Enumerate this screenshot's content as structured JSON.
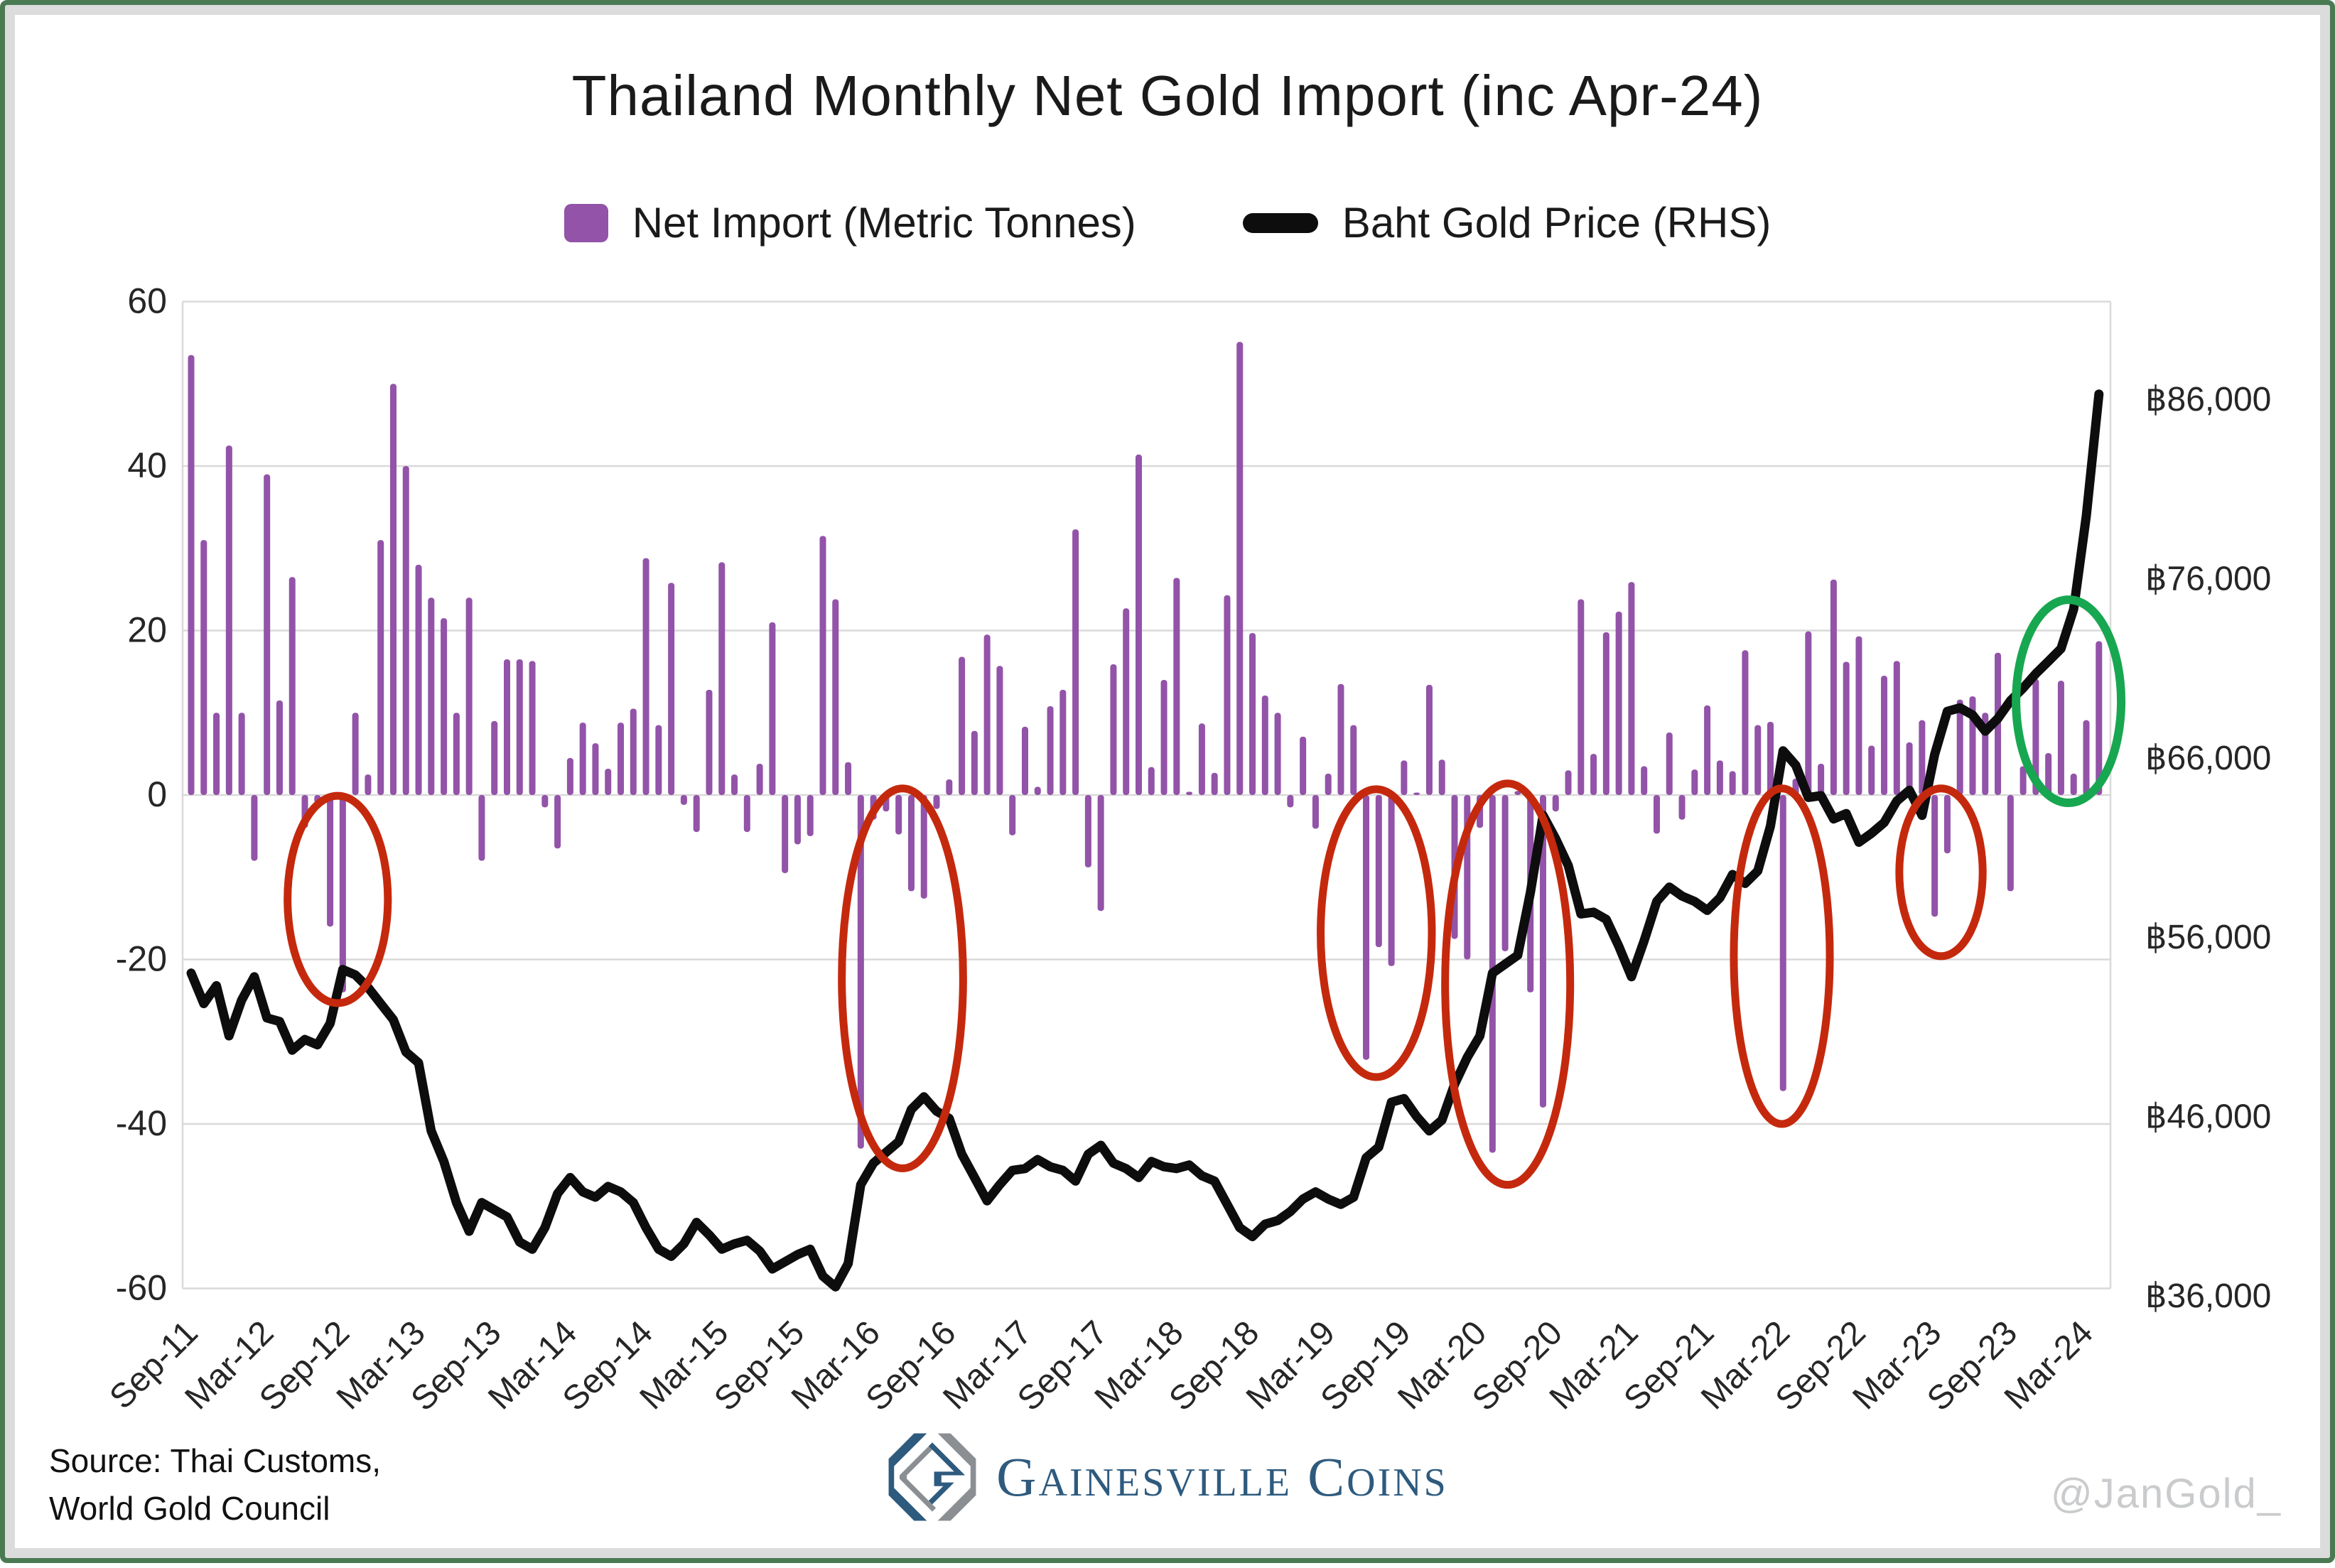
{
  "title": "Thailand Monthly Net Gold Import (inc Apr-24)",
  "legend": {
    "net_import_label": "Net Import (Metric Tonnes)",
    "gold_price_label": "Baht Gold Price (RHS)"
  },
  "footer": {
    "source_line1": "Source: Thai Customs,",
    "source_line2": "World Gold Council",
    "logo_word1": "Gainesville",
    "logo_word2": "Coins",
    "watermark": "@JanGold_"
  },
  "colors": {
    "bar": "#9253a8",
    "line": "#0d0d0d",
    "grid": "#d9d9d9",
    "red_circle": "#c5290d",
    "green_circle": "#17a750",
    "logo_blue": "#2e5a7e",
    "frame_green": "#4a7a52"
  },
  "chart_data": {
    "type": "bar+line",
    "title": "Thailand Monthly Net Gold Import (inc Apr-24)",
    "series": [
      {
        "name": "Net Import (Metric Tonnes)",
        "type": "bar",
        "axis": "left"
      },
      {
        "name": "Baht Gold Price (RHS)",
        "type": "line",
        "axis": "right"
      }
    ],
    "ylim_left": [
      -60,
      60
    ],
    "y_ticks_left": [
      "60",
      "40",
      "20",
      "0",
      "-20",
      "-40",
      "-60"
    ],
    "y_ticks_left_values": [
      60,
      40,
      20,
      0,
      -20,
      -40,
      -60
    ],
    "y_ticks_right": [
      "฿86,000",
      "฿76,000",
      "฿66,000",
      "฿56,000",
      "฿46,000",
      "฿36,000"
    ],
    "y_ticks_right_values": [
      86000,
      76000,
      66000,
      56000,
      46000,
      36000
    ],
    "x_tick_labels": [
      "Sep-11",
      "Mar-12",
      "Sep-12",
      "Mar-13",
      "Sep-13",
      "Mar-14",
      "Sep-14",
      "Mar-15",
      "Sep-15",
      "Mar-16",
      "Sep-16",
      "Mar-17",
      "Sep-17",
      "Mar-18",
      "Sep-18",
      "Mar-19",
      "Sep-19",
      "Mar-20",
      "Sep-20",
      "Mar-21",
      "Sep-21",
      "Mar-22",
      "Sep-22",
      "Mar-23",
      "Sep-23",
      "Mar-24"
    ],
    "months": [
      "Sep-11",
      "Oct-11",
      "Nov-11",
      "Dec-11",
      "Jan-12",
      "Feb-12",
      "Mar-12",
      "Apr-12",
      "May-12",
      "Jun-12",
      "Jul-12",
      "Aug-12",
      "Sep-12",
      "Oct-12",
      "Nov-12",
      "Dec-12",
      "Jan-13",
      "Feb-13",
      "Mar-13",
      "Apr-13",
      "May-13",
      "Jun-13",
      "Jul-13",
      "Aug-13",
      "Sep-13",
      "Oct-13",
      "Nov-13",
      "Dec-13",
      "Jan-14",
      "Feb-14",
      "Mar-14",
      "Apr-14",
      "May-14",
      "Jun-14",
      "Jul-14",
      "Aug-14",
      "Sep-14",
      "Oct-14",
      "Nov-14",
      "Dec-14",
      "Jan-15",
      "Feb-15",
      "Mar-15",
      "Apr-15",
      "May-15",
      "Jun-15",
      "Jul-15",
      "Aug-15",
      "Sep-15",
      "Oct-15",
      "Nov-15",
      "Dec-15",
      "Jan-16",
      "Feb-16",
      "Mar-16",
      "Apr-16",
      "May-16",
      "Jun-16",
      "Jul-16",
      "Aug-16",
      "Sep-16",
      "Oct-16",
      "Nov-16",
      "Dec-16",
      "Jan-17",
      "Feb-17",
      "Mar-17",
      "Apr-17",
      "May-17",
      "Jun-17",
      "Jul-17",
      "Aug-17",
      "Sep-17",
      "Oct-17",
      "Nov-17",
      "Dec-17",
      "Jan-18",
      "Feb-18",
      "Mar-18",
      "Apr-18",
      "May-18",
      "Jun-18",
      "Jul-18",
      "Aug-18",
      "Sep-18",
      "Oct-18",
      "Nov-18",
      "Dec-18",
      "Jan-19",
      "Feb-19",
      "Mar-19",
      "Apr-19",
      "May-19",
      "Jun-19",
      "Jul-19",
      "Aug-19",
      "Sep-19",
      "Oct-19",
      "Nov-19",
      "Dec-19",
      "Jan-20",
      "Feb-20",
      "Mar-20",
      "Apr-20",
      "May-20",
      "Jun-20",
      "Jul-20",
      "Aug-20",
      "Sep-20",
      "Oct-20",
      "Nov-20",
      "Dec-20",
      "Jan-21",
      "Feb-21",
      "Mar-21",
      "Apr-21",
      "May-21",
      "Jun-21",
      "Jul-21",
      "Aug-21",
      "Sep-21",
      "Oct-21",
      "Nov-21",
      "Dec-21",
      "Jan-22",
      "Feb-22",
      "Mar-22",
      "Apr-22",
      "May-22",
      "Jun-22",
      "Jul-22",
      "Aug-22",
      "Sep-22",
      "Oct-22",
      "Nov-22",
      "Dec-22",
      "Jan-23",
      "Feb-23",
      "Mar-23",
      "Apr-23",
      "May-23",
      "Jun-23",
      "Jul-23",
      "Aug-23",
      "Sep-23",
      "Oct-23",
      "Nov-23",
      "Dec-23",
      "Jan-24",
      "Feb-24",
      "Mar-24",
      "Apr-24"
    ],
    "net_import_tonnes": [
      53.5,
      31,
      10,
      42.5,
      10,
      -8,
      39,
      11.5,
      26.5,
      -4,
      -1,
      -16,
      -24,
      10,
      2.5,
      31,
      50,
      40,
      28,
      24,
      21.5,
      10,
      24,
      -8,
      9,
      16.5,
      16.5,
      16.3,
      -1.5,
      -6.5,
      4.5,
      8.8,
      6.3,
      3.2,
      8.8,
      10.5,
      28.8,
      8.5,
      25.8,
      -1.2,
      -4.5,
      12.8,
      28.3,
      2.5,
      -4.5,
      3.8,
      21,
      -9.5,
      -6,
      -5,
      31.5,
      23.8,
      4,
      -43,
      -3,
      -2,
      -4.8,
      -11.7,
      -12.6,
      -1.7,
      1.9,
      16.8,
      7.8,
      19.5,
      15.7,
      -4.9,
      8.3,
      1,
      10.8,
      12.8,
      32.3,
      -8.8,
      -14.1,
      15.9,
      22.7,
      41.4,
      3.4,
      14,
      26.4,
      0.4,
      8.7,
      2.7,
      24.3,
      55.1,
      19.7,
      12.1,
      10,
      -1.5,
      7.1,
      -4.1,
      2.6,
      13.5,
      8.5,
      -32.2,
      -18.5,
      -20.8,
      4.2,
      0.3,
      13.4,
      4.3,
      -17.5,
      -20,
      -4,
      -43.5,
      -19,
      0.5,
      -24,
      -38,
      -2,
      3,
      23.8,
      5,
      19.8,
      22.3,
      25.9,
      3.5,
      -4.7,
      7.6,
      -3,
      3.1,
      10.9,
      4.2,
      2.9,
      17.6,
      8.5,
      8.9,
      -36,
      2,
      19.9,
      3.8,
      26.2,
      16.2,
      19.3,
      6,
      14.5,
      16.3,
      6.4,
      9.1,
      -14.8,
      -7.1,
      11.6,
      12,
      10,
      17.3,
      -11.7,
      3.5,
      14.1,
      5.1,
      13.9,
      2.6,
      9.1,
      18.7
    ],
    "baht_gold_price": [
      54000,
      52300,
      53300,
      50500,
      52500,
      53800,
      51500,
      51300,
      49700,
      50300,
      50000,
      51200,
      54200,
      53900,
      53200,
      52300,
      51400,
      49600,
      49000,
      45200,
      43500,
      41200,
      39600,
      41200,
      40800,
      40400,
      39000,
      38600,
      39800,
      41700,
      42600,
      41800,
      41500,
      42100,
      41800,
      41200,
      39800,
      38600,
      38200,
      38900,
      40100,
      39400,
      38600,
      38900,
      39100,
      38500,
      37500,
      37900,
      38300,
      38600,
      37100,
      36500,
      37800,
      42200,
      43400,
      44000,
      44600,
      46400,
      47100,
      46300,
      45900,
      43900,
      42600,
      41300,
      42200,
      43000,
      43100,
      43600,
      43200,
      43000,
      42400,
      43900,
      44400,
      43400,
      43100,
      42600,
      43500,
      43200,
      43100,
      43300,
      42700,
      42400,
      41100,
      39800,
      39300,
      40000,
      40200,
      40700,
      41400,
      41800,
      41400,
      41100,
      41500,
      43700,
      44300,
      46800,
      47000,
      46000,
      45200,
      45800,
      47800,
      49300,
      50500,
      54000,
      54500,
      55000,
      58500,
      62800,
      61500,
      60000,
      57300,
      57400,
      57000,
      55500,
      53800,
      55800,
      58000,
      58800,
      58300,
      58000,
      57500,
      58200,
      59500,
      59000,
      59700,
      62200,
      66400,
      65600,
      63800,
      63900,
      62600,
      62900,
      61300,
      61800,
      62400,
      63600,
      64200,
      62800,
      66200,
      68600,
      68800,
      68400,
      67500,
      68200,
      69200,
      69900,
      70700,
      71400,
      72100,
      74300,
      79500,
      86300
    ],
    "annotations": [
      {
        "shape": "ellipse",
        "color": "red",
        "month_center": 11.6,
        "value_center": -12.7,
        "rx_months": 3.97,
        "ry_values": 12.6
      },
      {
        "shape": "ellipse",
        "color": "red",
        "month_center": 56.3,
        "value_center": -22.3,
        "rx_months": 4.8,
        "ry_values": 23.1
      },
      {
        "shape": "ellipse",
        "color": "red",
        "month_center": 93.8,
        "value_center": -16.8,
        "rx_months": 4.4,
        "ry_values": 17.5
      },
      {
        "shape": "ellipse",
        "color": "red",
        "month_center": 104.2,
        "value_center": -23.0,
        "rx_months": 4.95,
        "ry_values": 24.4
      },
      {
        "shape": "ellipse",
        "color": "red",
        "month_center": 125.9,
        "value_center": -19.6,
        "rx_months": 3.8,
        "ry_values": 20.4
      },
      {
        "shape": "ellipse",
        "color": "red",
        "month_center": 138.5,
        "value_center": -9.4,
        "rx_months": 3.3,
        "ry_values": 10.2
      },
      {
        "shape": "ellipse",
        "color": "green",
        "month_center": 148.6,
        "value_center": 11.4,
        "rx_months": 4.16,
        "ry_values": 12.35
      }
    ],
    "legend_position": "top-center",
    "grid": "horizontal-only"
  }
}
